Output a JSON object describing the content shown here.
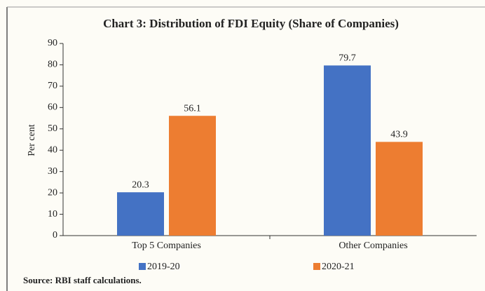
{
  "chart_data": {
    "type": "bar",
    "title": "Chart 3: Distribution of FDI Equity (Share of Companies)",
    "ylabel": "Per cent",
    "categories": [
      "Top 5 Companies",
      "Other Companies"
    ],
    "series": [
      {
        "name": "2019-20",
        "color": "#4472c4",
        "values": [
          20.3,
          79.7
        ]
      },
      {
        "name": "2020-21",
        "color": "#ed7d31",
        "values": [
          56.1,
          43.9
        ]
      }
    ],
    "ylim": [
      0,
      90
    ],
    "yticks": [
      0,
      10,
      20,
      30,
      40,
      50,
      60,
      70,
      80,
      90
    ],
    "source": "Source: RBI staff calculations."
  }
}
